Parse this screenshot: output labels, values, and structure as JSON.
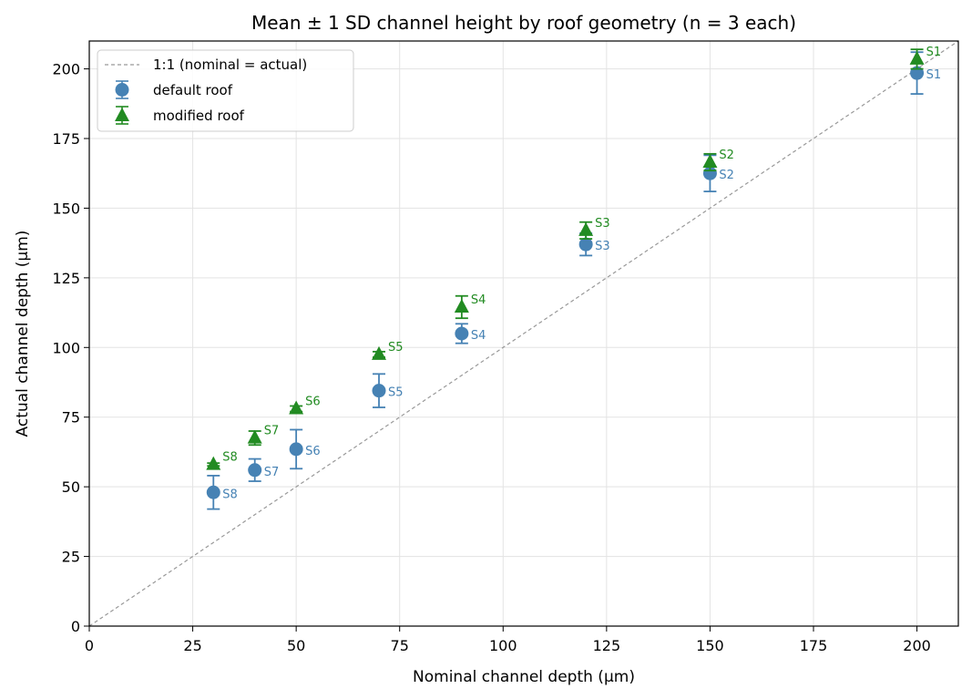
{
  "chart_data": {
    "type": "scatter",
    "title": "Mean ± 1 SD channel height by roof geometry  (n = 3 each)",
    "xlabel": "Nominal channel depth (µm)",
    "ylabel": "Actual channel depth (µm)",
    "xlim": [
      0,
      210
    ],
    "ylim": [
      0,
      210
    ],
    "xticks": [
      0,
      25,
      50,
      75,
      100,
      125,
      150,
      175,
      200
    ],
    "yticks": [
      0,
      25,
      50,
      75,
      100,
      125,
      150,
      175,
      200
    ],
    "grid": true,
    "legend_position": "top-left",
    "reference_line": {
      "name": "1:1 (nominal = actual)",
      "x": [
        0,
        210
      ],
      "y": [
        0,
        210
      ],
      "color": "#999999",
      "style": "dashed"
    },
    "series": [
      {
        "name": "default roof",
        "marker": "circle",
        "color": "#4682b4",
        "points": [
          {
            "label": "S1",
            "x": 200,
            "y": 198.5,
            "sd": 7.5
          },
          {
            "label": "S2",
            "x": 150,
            "y": 162.5,
            "sd": 6.5
          },
          {
            "label": "S3",
            "x": 120,
            "y": 137,
            "sd": 4
          },
          {
            "label": "S4",
            "x": 90,
            "y": 105,
            "sd": 3.5
          },
          {
            "label": "S5",
            "x": 70,
            "y": 84.5,
            "sd": 6
          },
          {
            "label": "S6",
            "x": 50,
            "y": 63.5,
            "sd": 7
          },
          {
            "label": "S7",
            "x": 40,
            "y": 56,
            "sd": 4
          },
          {
            "label": "S8",
            "x": 30,
            "y": 48,
            "sd": 6
          }
        ]
      },
      {
        "name": "modified roof",
        "marker": "triangle",
        "color": "#228b22",
        "points": [
          {
            "label": "S1",
            "x": 200,
            "y": 203.5,
            "sd": 3.5
          },
          {
            "label": "S2",
            "x": 150,
            "y": 166.5,
            "sd": 3
          },
          {
            "label": "S3",
            "x": 120,
            "y": 142,
            "sd": 3
          },
          {
            "label": "S4",
            "x": 90,
            "y": 114.5,
            "sd": 4
          },
          {
            "label": "S5",
            "x": 70,
            "y": 97.5,
            "sd": 1
          },
          {
            "label": "S6",
            "x": 50,
            "y": 78,
            "sd": 1
          },
          {
            "label": "S7",
            "x": 40,
            "y": 67.5,
            "sd": 2.5
          },
          {
            "label": "S8",
            "x": 30,
            "y": 58,
            "sd": 0.5
          }
        ]
      }
    ]
  }
}
